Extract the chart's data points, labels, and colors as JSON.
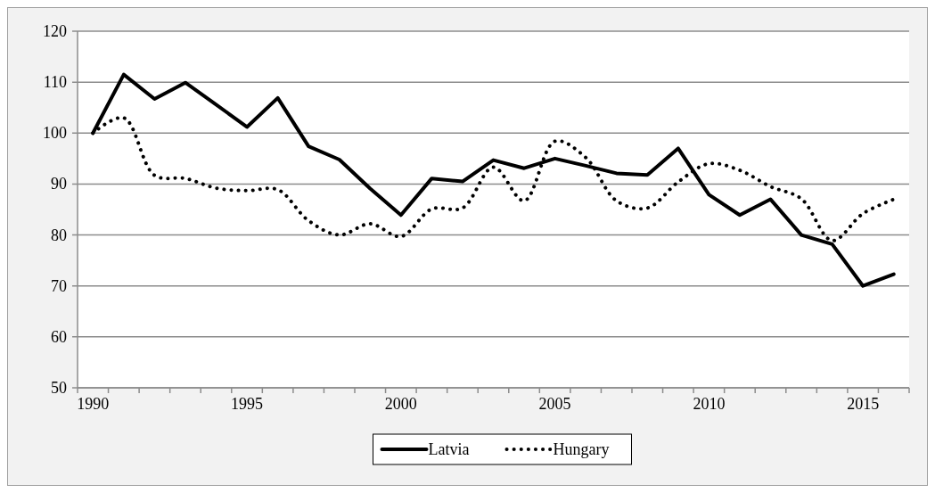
{
  "chart_data": {
    "type": "line",
    "categories": [
      "1990",
      null,
      null,
      null,
      null,
      "1995",
      null,
      null,
      null,
      null,
      "2000",
      null,
      null,
      null,
      null,
      "2005",
      null,
      null,
      null,
      null,
      "2010",
      null,
      null,
      null,
      null,
      "2015",
      null
    ],
    "ylim": [
      50,
      120
    ],
    "yticks": [
      50,
      60,
      70,
      80,
      90,
      100,
      110,
      120
    ],
    "grid": "y",
    "legend": "bottom",
    "series": [
      {
        "name": "Latvia",
        "color": "#000000",
        "line_style": "solid",
        "values": [
          100,
          111.5,
          106.7,
          109.9,
          105.6,
          101.2,
          106.9,
          97.4,
          94.8,
          89.1,
          83.9,
          91.1,
          90.5,
          94.7,
          93.1,
          95.0,
          93.6,
          92.1,
          91.8,
          97.0,
          87.9,
          83.9,
          87.0,
          80.0,
          78.2,
          70.0,
          72.3
        ]
      },
      {
        "name": "Hungary",
        "color": "#000000",
        "line_style": "dotted",
        "values": [
          100,
          103.0,
          91.7,
          91.1,
          89.2,
          88.7,
          88.9,
          82.8,
          80.0,
          82.2,
          79.7,
          85.1,
          85.3,
          93.3,
          86.7,
          98.4,
          95.2,
          86.7,
          85.3,
          90.4,
          94.0,
          92.7,
          89.5,
          87.1,
          78.9,
          84.2,
          87.0
        ]
      }
    ]
  }
}
